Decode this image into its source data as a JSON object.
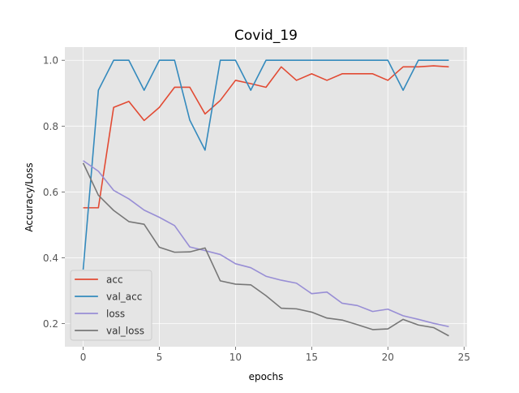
{
  "chart_data": {
    "type": "line",
    "title": "Covid_19",
    "xlabel": "epochs",
    "ylabel": "Accuracy/Loss",
    "xlim": [
      -1.2,
      25.2
    ],
    "ylim": [
      0.13,
      1.04
    ],
    "xticks": [
      0,
      5,
      10,
      15,
      20,
      25
    ],
    "yticks": [
      0.2,
      0.4,
      0.6,
      0.8,
      1.0
    ],
    "xtick_labels": [
      "0",
      "5",
      "10",
      "15",
      "20",
      "25"
    ],
    "ytick_labels": [
      "0.2",
      "0.4",
      "0.6",
      "0.8",
      "1.0"
    ],
    "grid": true,
    "legend_position": "lower-left",
    "x": [
      0,
      1,
      2,
      3,
      4,
      5,
      6,
      7,
      8,
      9,
      10,
      11,
      12,
      13,
      14,
      15,
      16,
      17,
      18,
      19,
      20,
      21,
      22,
      23,
      24
    ],
    "series": [
      {
        "name": "acc",
        "color": "#e24a33",
        "values": [
          0.552,
          0.552,
          0.857,
          0.875,
          0.817,
          0.857,
          0.918,
          0.918,
          0.837,
          0.878,
          0.939,
          0.929,
          0.918,
          0.98,
          0.939,
          0.959,
          0.939,
          0.959,
          0.959,
          0.959,
          0.939,
          0.98,
          0.98,
          0.983,
          0.98
        ]
      },
      {
        "name": "val_acc",
        "color": "#348abd",
        "values": [
          0.364,
          0.909,
          1.0,
          1.0,
          0.909,
          1.0,
          1.0,
          0.818,
          0.727,
          1.0,
          1.0,
          0.909,
          1.0,
          1.0,
          1.0,
          1.0,
          1.0,
          1.0,
          1.0,
          1.0,
          1.0,
          0.909,
          1.0,
          1.0,
          1.0
        ]
      },
      {
        "name": "loss",
        "color": "#988ed5",
        "values": [
          0.695,
          0.663,
          0.605,
          0.579,
          0.545,
          0.523,
          0.498,
          0.433,
          0.422,
          0.41,
          0.382,
          0.37,
          0.344,
          0.332,
          0.323,
          0.291,
          0.296,
          0.262,
          0.255,
          0.237,
          0.244,
          0.224,
          0.213,
          0.201,
          0.191
        ]
      },
      {
        "name": "val_loss",
        "color": "#777777",
        "values": [
          0.688,
          0.59,
          0.544,
          0.51,
          0.502,
          0.432,
          0.417,
          0.418,
          0.43,
          0.33,
          0.32,
          0.318,
          0.285,
          0.247,
          0.245,
          0.235,
          0.217,
          0.211,
          0.197,
          0.182,
          0.184,
          0.213,
          0.196,
          0.188,
          0.163
        ]
      }
    ]
  }
}
